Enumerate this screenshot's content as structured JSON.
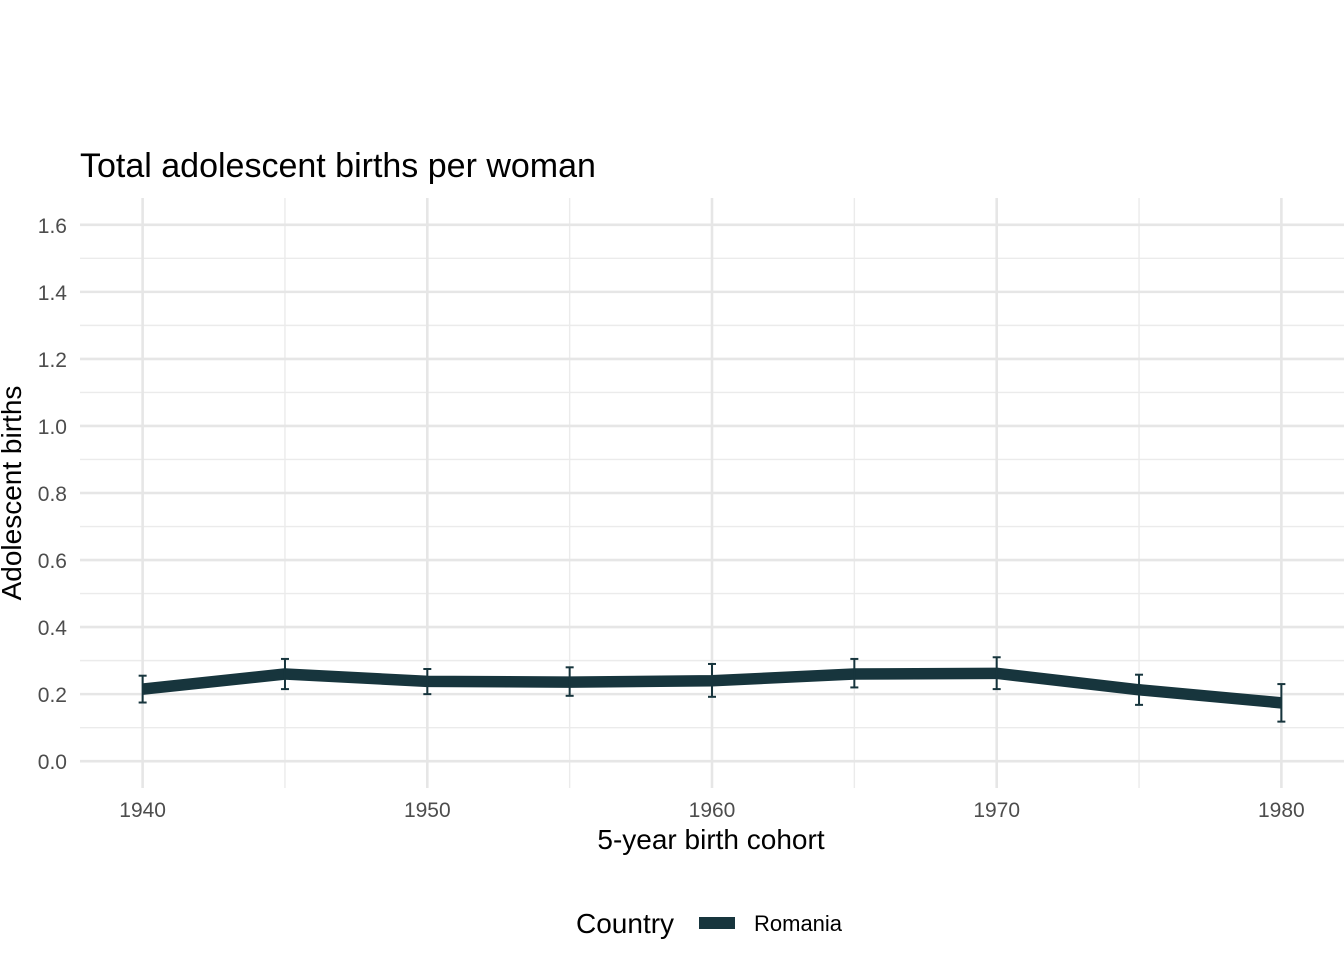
{
  "chart_data": {
    "type": "line",
    "title": "Total adolescent births per woman",
    "xlabel": "5-year birth cohort",
    "ylabel": "Adolescent births",
    "x_ticks": [
      1940,
      1950,
      1960,
      1970,
      1980
    ],
    "y_ticks": [
      "0.0",
      "0.2",
      "0.4",
      "0.6",
      "0.8",
      "1.0",
      "1.2",
      "1.4",
      "1.6"
    ],
    "xlim": [
      1937.8,
      1982.2
    ],
    "ylim": [
      -0.08,
      1.68
    ],
    "grid": true,
    "legend": {
      "title": "Country",
      "position": "bottom"
    },
    "series": [
      {
        "name": "Romania",
        "color": "#17353d",
        "x": [
          1940,
          1945,
          1950,
          1955,
          1960,
          1965,
          1970,
          1975,
          1980
        ],
        "y": [
          0.215,
          0.26,
          0.238,
          0.236,
          0.24,
          0.26,
          0.262,
          0.213,
          0.174
        ],
        "lower": [
          0.175,
          0.215,
          0.2,
          0.195,
          0.192,
          0.22,
          0.215,
          0.168,
          0.118
        ],
        "upper": [
          0.255,
          0.305,
          0.275,
          0.28,
          0.29,
          0.305,
          0.31,
          0.258,
          0.23
        ]
      }
    ]
  }
}
